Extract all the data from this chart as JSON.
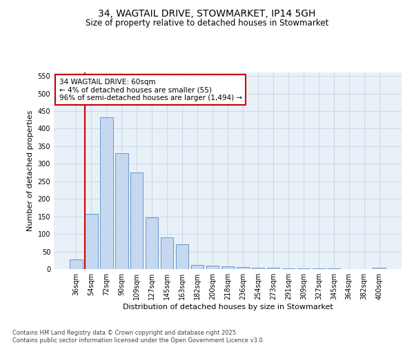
{
  "title_line1": "34, WAGTAIL DRIVE, STOWMARKET, IP14 5GH",
  "title_line2": "Size of property relative to detached houses in Stowmarket",
  "xlabel": "Distribution of detached houses by size in Stowmarket",
  "ylabel": "Number of detached properties",
  "categories": [
    "36sqm",
    "54sqm",
    "72sqm",
    "90sqm",
    "109sqm",
    "127sqm",
    "145sqm",
    "163sqm",
    "182sqm",
    "200sqm",
    "218sqm",
    "236sqm",
    "254sqm",
    "273sqm",
    "291sqm",
    "309sqm",
    "327sqm",
    "345sqm",
    "364sqm",
    "382sqm",
    "400sqm"
  ],
  "values": [
    28,
    157,
    433,
    330,
    275,
    148,
    90,
    70,
    12,
    10,
    8,
    5,
    3,
    3,
    2,
    1,
    1,
    1,
    0,
    0,
    3
  ],
  "bar_facecolor": "#c5d8f0",
  "bar_edgecolor": "#6699cc",
  "highlight_bar_index": 1,
  "highlight_color": "#cc0000",
  "annotation_text": "34 WAGTAIL DRIVE: 60sqm\n← 4% of detached houses are smaller (55)\n96% of semi-detached houses are larger (1,494) →",
  "annotation_box_edgecolor": "#cc0000",
  "ylim": [
    0,
    560
  ],
  "yticks": [
    0,
    50,
    100,
    150,
    200,
    250,
    300,
    350,
    400,
    450,
    500,
    550
  ],
  "grid_color": "#c0d0e0",
  "background_color": "#e8f0f8",
  "footer_text": "Contains HM Land Registry data © Crown copyright and database right 2025.\nContains public sector information licensed under the Open Government Licence v3.0.",
  "title_fontsize": 10,
  "subtitle_fontsize": 8.5,
  "axis_label_fontsize": 8,
  "tick_fontsize": 7,
  "annotation_fontsize": 7.5
}
